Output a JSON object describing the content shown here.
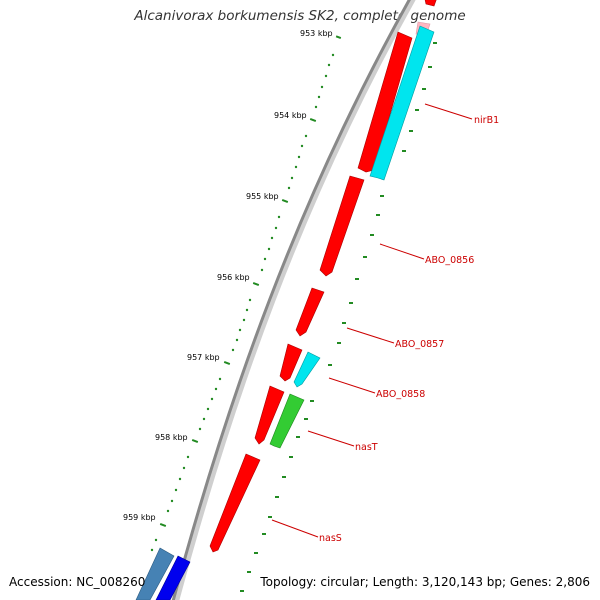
{
  "title": "Alcanivorax borkumensis SK2, complete genome",
  "accession": "Accession: NC_008260",
  "topology": "Topology: circular; Length: 3,120,143 bp; Genes: 2,806",
  "colors": {
    "backbone": "#888888",
    "cds": "#ff0000",
    "rrna_like": "#00e5ee",
    "green_gene": "#33cc33",
    "blue_gene": "#0000ee",
    "steelblue_gene": "#4682b4",
    "pink_gene": "#ffb6c1",
    "tick": "#006400",
    "label": "#cc0000"
  },
  "ruler": [
    {
      "label": "953 kbp"
    },
    {
      "label": "954 kbp"
    },
    {
      "label": "955 kbp"
    },
    {
      "label": "956 kbp"
    },
    {
      "label": "957 kbp"
    },
    {
      "label": "958 kbp"
    },
    {
      "label": "959 kbp"
    }
  ],
  "gene_labels": [
    {
      "name": "nirB1"
    },
    {
      "name": "ABO_0856"
    },
    {
      "name": "ABO_0857"
    },
    {
      "name": "ABO_0858"
    },
    {
      "name": "nasT"
    },
    {
      "name": "nasS"
    }
  ]
}
